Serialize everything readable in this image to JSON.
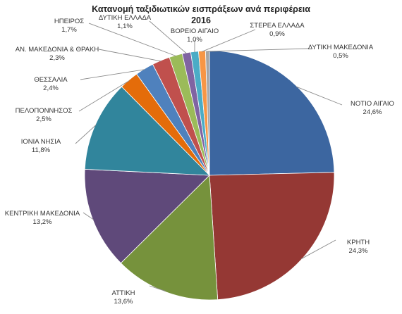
{
  "chart_data": {
    "type": "pie",
    "title": "Κατανομή ταξιδιωτικών εισπράξεων ανά περιφέρεια",
    "subtitle": "2016",
    "unit": "%",
    "categories": [
      "ΝΟΤΙΟ ΑΙΓΑΙΟ",
      "ΚΡΗΤΗ",
      "ΑΤΤΙΚΗ",
      "ΚΕΝΤΡΙΚΗ ΜΑΚΕΔΟΝΙΑ",
      "ΙΟΝΙΑ ΝΗΣΙΑ",
      "ΠΕΛΟΠΟΝΝΗΣΟΣ",
      "ΘΕΣΣΑΛΙΑ",
      "ΑΝ. ΜΑΚΕΔΟΝΙΑ & ΘΡΑΚΗ",
      "ΗΠΕΙΡΟΣ",
      "ΔΥΤΙΚΗ ΕΛΛΑΔΑ",
      "ΒΟΡΕΙΟ ΑΙΓΑΙΟ",
      "ΣΤΕΡΕΑ ΕΛΛΑΔΑ",
      "ΔΥΤΙΚΗ ΜΑΚΕΔΟΝΙΑ"
    ],
    "values": [
      24.6,
      24.3,
      13.6,
      13.2,
      11.8,
      2.5,
      2.4,
      2.3,
      1.7,
      1.1,
      1.0,
      0.9,
      0.5
    ],
    "value_labels": [
      "24,6%",
      "24,3%",
      "13,6%",
      "13,2%",
      "11,8%",
      "2,5%",
      "2,4%",
      "2,3%",
      "1,7%",
      "1,1%",
      "1,0%",
      "0,9%",
      "0,5%"
    ],
    "colors": [
      "#3c66a0",
      "#953834",
      "#76923c",
      "#5f497a",
      "#31859c",
      "#e46c0a",
      "#4f81bd",
      "#c0504d",
      "#9bbb59",
      "#8064a2",
      "#4bacc6",
      "#f79646",
      "#a5a5a5"
    ],
    "start_angle_deg": 0,
    "direction": "clockwise",
    "legend": "none"
  }
}
